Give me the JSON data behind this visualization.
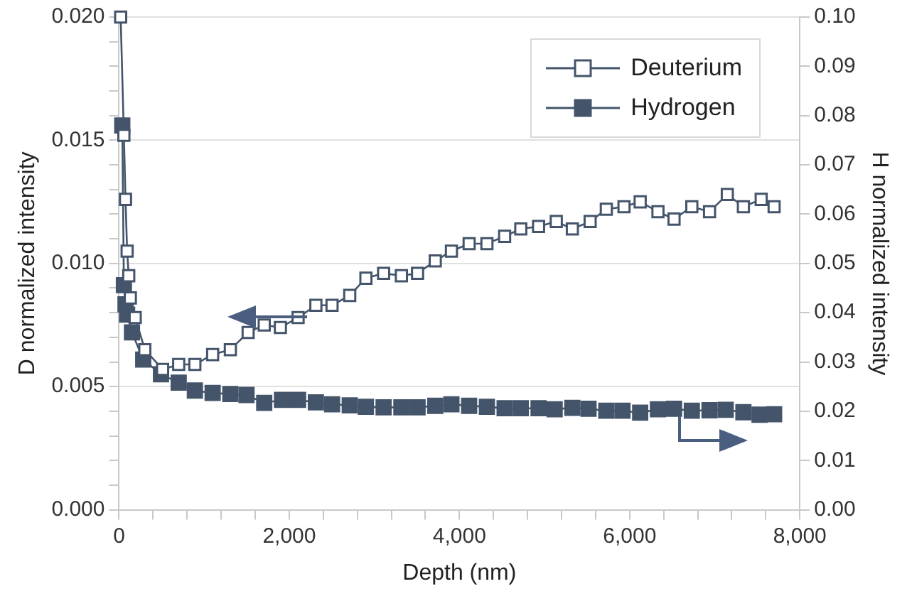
{
  "chart_data": {
    "type": "line",
    "xlabel": "Depth (nm)",
    "ylabel": "D normalized intensity",
    "y2label": "H normalized intensity",
    "xlim": [
      0,
      8000
    ],
    "xticks": [
      {
        "value": 0,
        "label": "0"
      },
      {
        "value": 400,
        "label": null
      },
      {
        "value": 800,
        "label": null
      },
      {
        "value": 1200,
        "label": null
      },
      {
        "value": 1600,
        "label": null
      },
      {
        "value": 2000,
        "label": "2,000"
      },
      {
        "value": 2400,
        "label": null
      },
      {
        "value": 2800,
        "label": null
      },
      {
        "value": 3200,
        "label": null
      },
      {
        "value": 3600,
        "label": null
      },
      {
        "value": 4000,
        "label": "4,000"
      },
      {
        "value": 4400,
        "label": null
      },
      {
        "value": 4800,
        "label": null
      },
      {
        "value": 5200,
        "label": null
      },
      {
        "value": 5600,
        "label": null
      },
      {
        "value": 6000,
        "label": "6,000"
      },
      {
        "value": 6400,
        "label": null
      },
      {
        "value": 6800,
        "label": null
      },
      {
        "value": 7200,
        "label": null
      },
      {
        "value": 7600,
        "label": null
      },
      {
        "value": 8000,
        "label": "8,000"
      }
    ],
    "ylim": [
      0,
      0.02
    ],
    "yticks": [
      {
        "value": 0,
        "label": "0.000"
      },
      {
        "value": 0.001,
        "label": null
      },
      {
        "value": 0.002,
        "label": null
      },
      {
        "value": 0.003,
        "label": null
      },
      {
        "value": 0.004,
        "label": null
      },
      {
        "value": 0.005,
        "label": "0.005"
      },
      {
        "value": 0.006,
        "label": null
      },
      {
        "value": 0.007,
        "label": null
      },
      {
        "value": 0.008,
        "label": null
      },
      {
        "value": 0.009,
        "label": null
      },
      {
        "value": 0.01,
        "label": "0.010"
      },
      {
        "value": 0.011,
        "label": null
      },
      {
        "value": 0.012,
        "label": null
      },
      {
        "value": 0.013,
        "label": null
      },
      {
        "value": 0.014,
        "label": null
      },
      {
        "value": 0.015,
        "label": "0.015"
      },
      {
        "value": 0.016,
        "label": null
      },
      {
        "value": 0.017,
        "label": null
      },
      {
        "value": 0.018,
        "label": null
      },
      {
        "value": 0.019,
        "label": null
      },
      {
        "value": 0.02,
        "label": "0.020"
      }
    ],
    "y2lim": [
      0,
      0.1
    ],
    "y2ticks": [
      {
        "value": 0,
        "label": "0.00"
      },
      {
        "value": 0.01,
        "label": "0.01"
      },
      {
        "value": 0.02,
        "label": "0.02"
      },
      {
        "value": 0.03,
        "label": "0.03"
      },
      {
        "value": 0.04,
        "label": "0.04"
      },
      {
        "value": 0.05,
        "label": "0.05"
      },
      {
        "value": 0.06,
        "label": "0.06"
      },
      {
        "value": 0.07,
        "label": "0.07"
      },
      {
        "value": 0.08,
        "label": "0.08"
      },
      {
        "value": 0.09,
        "label": "0.09"
      },
      {
        "value": 0.1,
        "label": "0.10"
      }
    ],
    "grid": "y",
    "legend": "top right",
    "marker": "square",
    "line_style": "solid",
    "series": [
      {
        "name": "Deuterium",
        "color": "#44546a",
        "x": [
          19,
          57,
          76,
          95,
          114,
          133,
          190,
          303,
          512,
          701,
          891,
          1100,
          1308,
          1517,
          1706,
          1896,
          2104,
          2313,
          2503,
          2711,
          2901,
          3109,
          3318,
          3508,
          3716,
          3906,
          4114,
          4323,
          4531,
          4721,
          4930,
          5138,
          5327,
          5536,
          5726,
          5934,
          6124,
          6333,
          6522,
          6731,
          6939,
          7148,
          7337,
          7546,
          7698
        ],
        "values": [
          0.02,
          0.0152,
          0.0126,
          0.0105,
          0.0095,
          0.0086,
          0.0078,
          0.0065,
          0.0057,
          0.0059,
          0.0059,
          0.0063,
          0.0065,
          0.0072,
          0.0075,
          0.0074,
          0.0078,
          0.0083,
          0.0083,
          0.0087,
          0.0094,
          0.0096,
          0.0095,
          0.0096,
          0.0101,
          0.0105,
          0.0108,
          0.0108,
          0.0111,
          0.0114,
          0.0115,
          0.0117,
          0.0114,
          0.0117,
          0.0122,
          0.0123,
          0.0125,
          0.0121,
          0.0118,
          0.0123,
          0.0121,
          0.0128,
          0.0123,
          0.0126,
          0.0123
        ]
      },
      {
        "name": "Hydrogen",
        "color": "#44546a",
        "axis": "y2",
        "x": [
          38,
          57,
          76,
          95,
          152,
          284,
          493,
          701,
          891,
          1100,
          1308,
          1498,
          1706,
          1915,
          2104,
          2313,
          2503,
          2711,
          2901,
          3109,
          3318,
          3508,
          3716,
          3906,
          4114,
          4323,
          4531,
          4721,
          4930,
          5119,
          5327,
          5517,
          5726,
          5916,
          6124,
          6333,
          6522,
          6731,
          6939,
          7129,
          7337,
          7527,
          7698
        ],
        "values": [
          0.078,
          0.0456,
          0.0417,
          0.0396,
          0.036,
          0.0305,
          0.0275,
          0.0258,
          0.0242,
          0.0237,
          0.0235,
          0.0233,
          0.0217,
          0.0223,
          0.0223,
          0.0218,
          0.0214,
          0.0212,
          0.0209,
          0.0208,
          0.0208,
          0.0208,
          0.0211,
          0.0214,
          0.0211,
          0.0209,
          0.0206,
          0.0206,
          0.0206,
          0.0204,
          0.0207,
          0.0205,
          0.0201,
          0.0201,
          0.0197,
          0.0204,
          0.0205,
          0.0201,
          0.0202,
          0.0203,
          0.0198,
          0.0193,
          0.0194
        ]
      }
    ]
  }
}
